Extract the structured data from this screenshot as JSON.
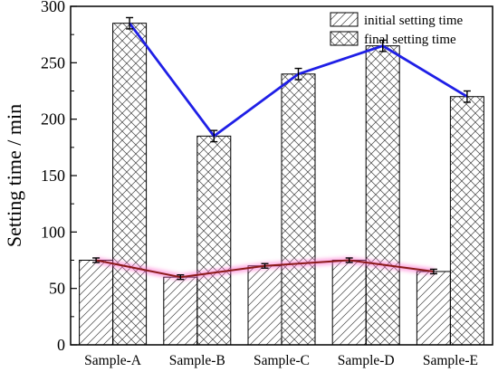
{
  "chart_data": {
    "type": "bar",
    "title": "",
    "xlabel": "",
    "ylabel": "Setting time / min",
    "ylim": [
      0,
      300
    ],
    "yticks": [
      0,
      50,
      100,
      150,
      200,
      250,
      300
    ],
    "categories": [
      "Sample-A",
      "Sample-B",
      "Sample-C",
      "Sample-D",
      "Sample-E"
    ],
    "grid": false,
    "legend_position": "top-right",
    "series": [
      {
        "name": "initial setting time",
        "pattern": "diagonal-hatch",
        "values": [
          75,
          60,
          70,
          75,
          65
        ],
        "errors": [
          2,
          2,
          2,
          2,
          2
        ],
        "line_color": "#8B1A1A",
        "glow_color": "#FF66CC"
      },
      {
        "name": "final setting time",
        "pattern": "cross-hatch",
        "values": [
          285,
          185,
          240,
          265,
          220
        ],
        "errors": [
          5,
          5,
          5,
          5,
          5
        ],
        "line_color": "#1F1FE6"
      }
    ]
  }
}
